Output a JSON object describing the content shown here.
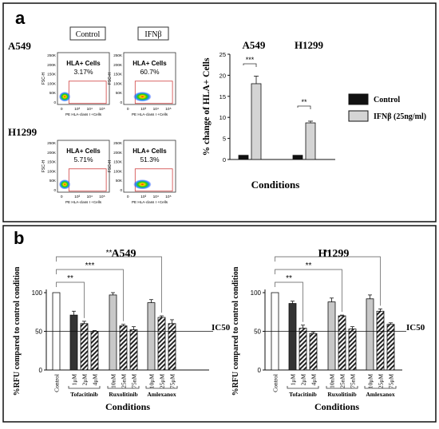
{
  "panel_a": {
    "letter": "a",
    "row_labels": [
      "A549",
      "H1299"
    ],
    "column_labels": [
      "Control",
      "IFNβ"
    ],
    "flow_y_axis_label": "FSC-H",
    "flow_x_axis_label": "PE HLA-class I +Cells",
    "flow_y_ticks": [
      "250K",
      "200K",
      "150K",
      "100K",
      "50K",
      "0"
    ],
    "flow_x_ticks": [
      "0",
      "10³",
      "10⁴",
      "10⁵"
    ],
    "flow_plots": [
      {
        "title": "HLA+ Cells",
        "value": "3.17%"
      },
      {
        "title": "HLA+ Cells",
        "value": "60.7%"
      },
      {
        "title": "HLA+ Cells",
        "value": "5.71%"
      },
      {
        "title": "HLA+ Cells",
        "value": "51.3%"
      }
    ]
  },
  "panel_b": {
    "letter": "b"
  },
  "legend": {
    "items": [
      {
        "label": "Control",
        "color": "#111111"
      },
      {
        "label": "IFNβ (25ng/ml)",
        "color": "#d4d4d4"
      }
    ]
  },
  "chart_data": [
    {
      "type": "bar",
      "panel": "a",
      "group_labels": [
        "A549",
        "H1299"
      ],
      "categories": [
        "A549",
        "H1299"
      ],
      "series": [
        {
          "name": "Control",
          "values": [
            1,
            1
          ],
          "errors": [
            0,
            0
          ]
        },
        {
          "name": "IFNβ (25ng/ml)",
          "values": [
            18,
            8.7
          ],
          "errors": [
            1.8,
            0.4
          ]
        }
      ],
      "xlabel": "Conditions",
      "ylabel": "% change of HLA+ Cells",
      "ylim": [
        0,
        25
      ],
      "yticks": [
        "0",
        "5",
        "10",
        "15",
        "20",
        "25"
      ],
      "significance": [
        "***",
        "**"
      ]
    },
    {
      "type": "bar",
      "panel": "b",
      "title": "A549",
      "xlabel": "Conditions",
      "ylabel": "%RFU compared to control condition",
      "ylim": [
        0,
        100
      ],
      "yticks": [
        "0",
        "50",
        "100"
      ],
      "threshold": {
        "value": 50,
        "label": "IC50"
      },
      "categories": [
        "Control",
        "1μM",
        "2μM",
        "4μM",
        "10nM",
        "25nM",
        "75nM",
        "10μM",
        "25μM",
        "75μM"
      ],
      "values": [
        100,
        71,
        60,
        50,
        97,
        57,
        52,
        87,
        68,
        60
      ],
      "errors": [
        0,
        5,
        3,
        1,
        3,
        2,
        4,
        4,
        2,
        5
      ],
      "groups": [
        {
          "label": "Tofacitinib"
        },
        {
          "label": "Ruxolitinib"
        },
        {
          "label": "Amlexanox"
        }
      ],
      "significance": [
        "**",
        "***",
        "**"
      ]
    },
    {
      "type": "bar",
      "panel": "b",
      "title": "H1299",
      "xlabel": "Conditions",
      "ylabel": "%RFU compared to control condition",
      "ylim": [
        0,
        100
      ],
      "yticks": [
        "0",
        "50",
        "100"
      ],
      "threshold": {
        "value": 50,
        "label": "IC50"
      },
      "categories": [
        "Control",
        "1μM",
        "2μM",
        "4μM",
        "10nM",
        "25nM",
        "75nM",
        "10μM",
        "25μM",
        "75μM"
      ],
      "values": [
        100,
        86,
        54,
        47,
        88,
        70,
        53,
        92,
        76,
        59
      ],
      "errors": [
        0,
        3,
        4,
        2,
        5,
        1,
        3,
        5,
        3,
        2
      ],
      "groups": [
        {
          "label": "Tofacitinib"
        },
        {
          "label": "Ruxolitinib"
        },
        {
          "label": "Amlexanox"
        }
      ],
      "significance": [
        "**",
        "**",
        "**"
      ]
    }
  ]
}
